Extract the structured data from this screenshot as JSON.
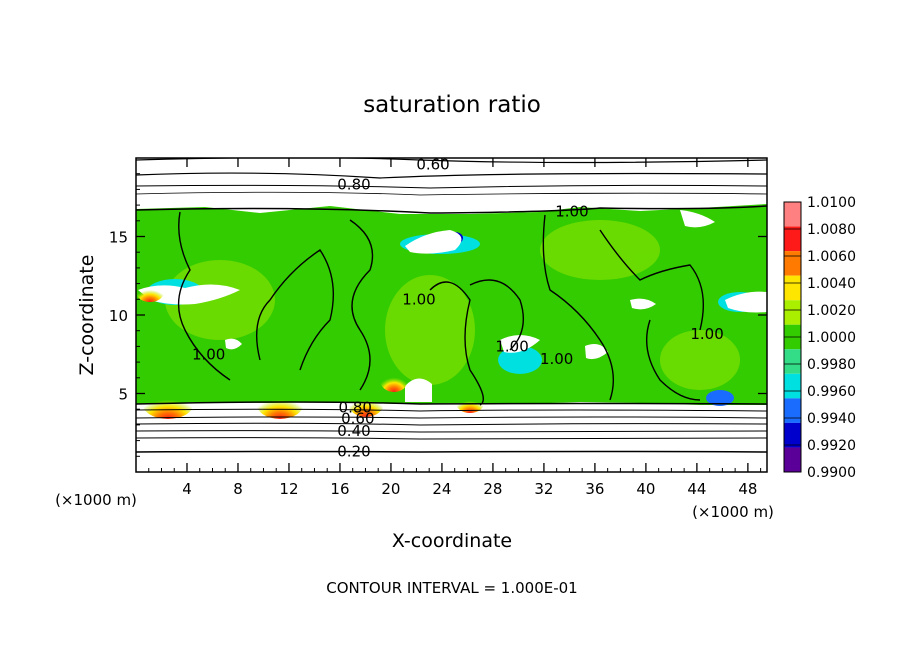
{
  "chart_data": {
    "type": "heatmap",
    "title": "saturation ratio",
    "xlabel": "X-coordinate",
    "ylabel": "Z-coordinate",
    "x_unit": "(×1000 m)",
    "y_unit": "(×1000 m)",
    "xlim": [
      0,
      49.5
    ],
    "ylim": [
      0,
      20
    ],
    "x_ticks": [
      4,
      8,
      12,
      16,
      20,
      24,
      28,
      32,
      36,
      40,
      44,
      48
    ],
    "y_ticks": [
      5,
      10,
      15
    ],
    "grid": false,
    "colorbar": {
      "levels": [
        "1.0100",
        "1.0080",
        "1.0060",
        "1.0040",
        "1.0020",
        "1.0000",
        "0.9980",
        "0.9960",
        "0.9940",
        "0.9920",
        "0.9900"
      ],
      "colors": [
        "#ff8080",
        "#ff1a1a",
        "#ff7a00",
        "#ffe600",
        "#aaee00",
        "#33cc00",
        "#33dd88",
        "#00e0e0",
        "#1a6cff",
        "#0000cc",
        "#5a0099"
      ]
    },
    "contour_labels": [
      {
        "text": "0.60",
        "x": 23.3,
        "y": 19.6
      },
      {
        "text": "0.80",
        "x": 17.1,
        "y": 18.3
      },
      {
        "text": "1.00",
        "x": 34.2,
        "y": 16.6
      },
      {
        "text": "1.00",
        "x": 22.2,
        "y": 11.0
      },
      {
        "text": "1.00",
        "x": 44.8,
        "y": 8.8
      },
      {
        "text": "1.00",
        "x": 29.5,
        "y": 8.0
      },
      {
        "text": "1.00",
        "x": 33.0,
        "y": 7.2
      },
      {
        "text": "1.00",
        "x": 5.7,
        "y": 7.5
      },
      {
        "text": "0.80",
        "x": 17.2,
        "y": 4.1
      },
      {
        "text": "0.60",
        "x": 17.4,
        "y": 3.4
      },
      {
        "text": "0.40",
        "x": 17.1,
        "y": 2.6
      },
      {
        "text": "0.20",
        "x": 17.1,
        "y": 1.3
      }
    ],
    "contour_interval_text": "CONTOUR INTERVAL = 1.000E-01"
  }
}
